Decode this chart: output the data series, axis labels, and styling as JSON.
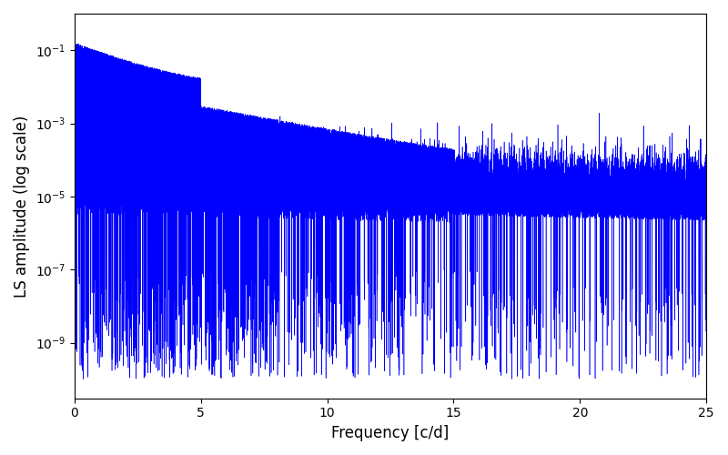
{
  "title": "",
  "xlabel": "Frequency [c/d]",
  "ylabel": "LS amplitude (log scale)",
  "xmin": 0,
  "xmax": 25,
  "ymin": 3e-11,
  "ymax": 1.0,
  "line_color": "#0000ff",
  "linewidth": 0.4,
  "n_points": 50000,
  "seed": 7,
  "figsize": [
    8.0,
    5.0
  ],
  "dpi": 100,
  "yticks": [
    1e-09,
    1e-07,
    1e-05,
    0.001,
    0.1
  ],
  "xticks": [
    0,
    5,
    10,
    15,
    20,
    25
  ]
}
